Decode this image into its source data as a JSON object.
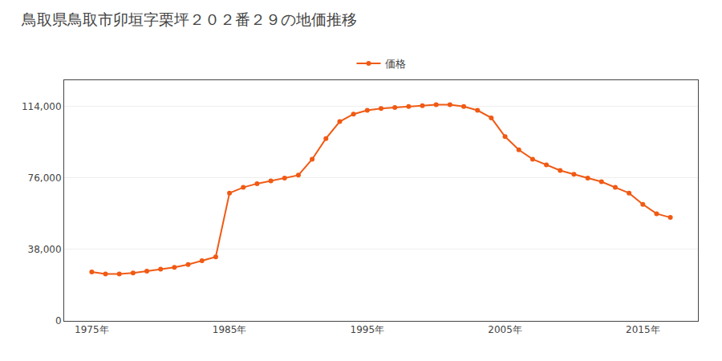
{
  "chart_data": {
    "type": "line",
    "title": "鳥取県鳥取市卯垣字栗坪２０２番２９の地価推移",
    "x": [
      1975,
      1976,
      1977,
      1978,
      1979,
      1980,
      1981,
      1982,
      1983,
      1984,
      1985,
      1986,
      1987,
      1988,
      1989,
      1990,
      1991,
      1992,
      1993,
      1994,
      1995,
      1996,
      1997,
      1998,
      1999,
      2000,
      2001,
      2002,
      2003,
      2004,
      2005,
      2006,
      2007,
      2008,
      2009,
      2010,
      2011,
      2012,
      2013,
      2014,
      2015,
      2016,
      2017
    ],
    "series": [
      {
        "name": "価格",
        "color": "#f05a14",
        "marker": "circle",
        "line_style": "solid",
        "values": [
          26000,
          25000,
          25000,
          25500,
          26500,
          27500,
          28500,
          30000,
          32000,
          34000,
          68000,
          71000,
          73000,
          74500,
          76000,
          77500,
          86000,
          97000,
          106000,
          110000,
          112000,
          113000,
          113500,
          114000,
          114500,
          115000,
          115000,
          114000,
          112000,
          108000,
          98000,
          91000,
          86000,
          83000,
          80000,
          78000,
          76000,
          74000,
          71000,
          68000,
          62000,
          57000,
          55000
        ]
      }
    ],
    "xlim": [
      1973,
      2019
    ],
    "xticks": [
      {
        "value": 1975,
        "label": "1975年"
      },
      {
        "value": 1985,
        "label": "1985年"
      },
      {
        "value": 1995,
        "label": "1995年"
      },
      {
        "value": 2005,
        "label": "2005年"
      },
      {
        "value": 2015,
        "label": "2015年"
      }
    ],
    "ylim": [
      0,
      128000
    ],
    "yticks": [
      0,
      {
        "value": 38000,
        "label": "38,000"
      },
      {
        "value": 76000,
        "label": "76,000"
      },
      {
        "value": 114000,
        "label": "114,000"
      }
    ],
    "grid": true,
    "legend": "top"
  }
}
